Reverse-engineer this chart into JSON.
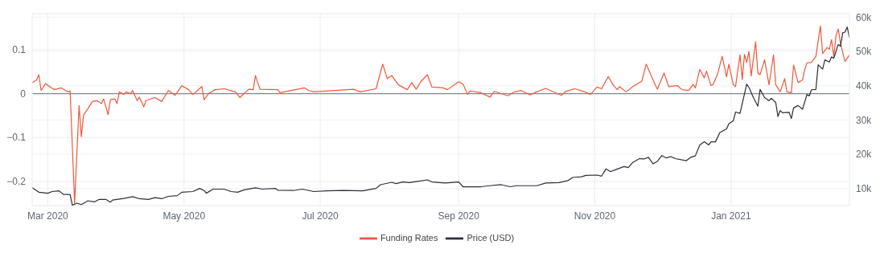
{
  "chart_data": {
    "type": "line",
    "xlim": [
      "2020-02-23",
      "2021-02-23"
    ],
    "xticks": [
      {
        "value": "2020-03-01",
        "label": "Mar 2020"
      },
      {
        "value": "2020-05-01",
        "label": "May 2020"
      },
      {
        "value": "2020-07-01",
        "label": "Jul 2020"
      },
      {
        "value": "2020-09-01",
        "label": "Sep 2020"
      },
      {
        "value": "2020-11-01",
        "label": "Nov 2020"
      },
      {
        "value": "2021-01-01",
        "label": "Jan 2021"
      }
    ],
    "ylim": [
      -0.255,
      0.182
    ],
    "yticks": [
      {
        "value": -0.2,
        "label": "−0.2"
      },
      {
        "value": -0.1,
        "label": "−0.1"
      },
      0,
      0.1
    ],
    "y2lim": [
      5000,
      61000
    ],
    "y2ticks": [
      {
        "value": 10000,
        "label": "10k"
      },
      {
        "value": 20000,
        "label": "20k"
      },
      {
        "value": 30000,
        "label": "30k"
      },
      {
        "value": 40000,
        "label": "40k"
      },
      {
        "value": 50000,
        "label": "50k"
      },
      {
        "value": 60000,
        "label": "60k"
      }
    ],
    "grid": true,
    "legend": "bottom",
    "marker": "none",
    "line_style": "solid",
    "ref_lines": [
      {
        "axis": "y",
        "value": 0,
        "color": "#7f8790"
      }
    ],
    "series": [
      {
        "name": "Funding Rates",
        "color": "#f0583a",
        "x": [
          "2020-02-23",
          "2020-02-25",
          "2020-02-26",
          "2020-02-27",
          "2020-02-29",
          "2020-03-02",
          "2020-03-04",
          "2020-03-07",
          "2020-03-10",
          "2020-03-11",
          "2020-03-13",
          "2020-03-15",
          "2020-03-16",
          "2020-03-17",
          "2020-03-19",
          "2020-03-21",
          "2020-03-23",
          "2020-03-25",
          "2020-03-26",
          "2020-03-28",
          "2020-03-29",
          "2020-03-31",
          "2020-04-01",
          "2020-04-02",
          "2020-04-04",
          "2020-04-05",
          "2020-04-07",
          "2020-04-08",
          "2020-04-10",
          "2020-04-11",
          "2020-04-13",
          "2020-04-14",
          "2020-04-18",
          "2020-04-21",
          "2020-04-24",
          "2020-04-27",
          "2020-04-30",
          "2020-05-03",
          "2020-05-05",
          "2020-05-09",
          "2020-05-10",
          "2020-05-12",
          "2020-05-15",
          "2020-05-19",
          "2020-05-24",
          "2020-05-26",
          "2020-05-30",
          "2020-06-01",
          "2020-06-02",
          "2020-06-04",
          "2020-06-12",
          "2020-06-13",
          "2020-06-18",
          "2020-06-24",
          "2020-06-26",
          "2020-06-28",
          "2020-07-16",
          "2020-07-19",
          "2020-07-26",
          "2020-07-29",
          "2020-07-31",
          "2020-08-02",
          "2020-08-05",
          "2020-08-09",
          "2020-08-11",
          "2020-08-13",
          "2020-08-15",
          "2020-08-18",
          "2020-08-20",
          "2020-08-25",
          "2020-08-27",
          "2020-09-01",
          "2020-09-03",
          "2020-09-05",
          "2020-09-06",
          "2020-09-11",
          "2020-09-15",
          "2020-09-17",
          "2020-09-20",
          "2020-09-23",
          "2020-09-26",
          "2020-09-29",
          "2020-10-03",
          "2020-10-06",
          "2020-10-10",
          "2020-10-17",
          "2020-10-19",
          "2020-10-23",
          "2020-10-27",
          "2020-10-30",
          "2020-11-02",
          "2020-11-04",
          "2020-11-07",
          "2020-11-09",
          "2020-11-11",
          "2020-11-12",
          "2020-11-15",
          "2020-11-18",
          "2020-11-22",
          "2020-11-24",
          "2020-11-28",
          "2020-11-29",
          "2020-12-02",
          "2020-12-04",
          "2020-12-08",
          "2020-12-10",
          "2020-12-13",
          "2020-12-15",
          "2020-12-16",
          "2020-12-18",
          "2020-12-20",
          "2020-12-21",
          "2020-12-23",
          "2020-12-24",
          "2020-12-26",
          "2020-12-28",
          "2020-12-30",
          "2020-12-31",
          "2021-01-02",
          "2021-01-03",
          "2021-01-05",
          "2021-01-06",
          "2021-01-07",
          "2021-01-08",
          "2021-01-09",
          "2021-01-10",
          "2021-01-12",
          "2021-01-13",
          "2021-01-14",
          "2021-01-16",
          "2021-01-18",
          "2021-01-20",
          "2021-01-21",
          "2021-01-23",
          "2021-01-25",
          "2021-01-26",
          "2021-01-28",
          "2021-01-29",
          "2021-01-31",
          "2021-02-02",
          "2021-02-03",
          "2021-02-04",
          "2021-02-06",
          "2021-02-08",
          "2021-02-10",
          "2021-02-11",
          "2021-02-13",
          "2021-02-14",
          "2021-02-15",
          "2021-02-16",
          "2021-02-17",
          "2021-02-18",
          "2021-02-19",
          "2021-02-21",
          "2021-02-23"
        ],
        "values": [
          0.025,
          0.031,
          0.043,
          0.007,
          0.023,
          0.015,
          0.009,
          0.013,
          0.004,
          0.006,
          -0.25,
          -0.027,
          -0.098,
          -0.049,
          -0.034,
          -0.018,
          -0.016,
          -0.023,
          -0.012,
          -0.048,
          -0.014,
          -0.012,
          -0.023,
          0.004,
          -0.002,
          0.004,
          0.0,
          0.007,
          -0.016,
          -0.008,
          -0.03,
          -0.016,
          -0.009,
          -0.018,
          0.007,
          -0.004,
          0.018,
          0.009,
          -0.002,
          0.016,
          -0.014,
          0.0,
          0.009,
          0.011,
          0.004,
          -0.009,
          0.01,
          0.009,
          0.041,
          0.01,
          0.009,
          0.002,
          0.007,
          0.013,
          0.007,
          0.004,
          0.01,
          0.004,
          0.011,
          0.067,
          0.034,
          0.041,
          0.02,
          0.009,
          0.025,
          0.01,
          0.027,
          0.043,
          0.015,
          0.013,
          0.009,
          0.027,
          0.021,
          -0.002,
          0.006,
          0.002,
          -0.008,
          0.005,
          0.0,
          -0.005,
          0.004,
          0.007,
          -0.003,
          0.004,
          0.012,
          -0.004,
          0.005,
          0.011,
          0.005,
          -0.002,
          0.015,
          0.011,
          0.039,
          0.021,
          0.009,
          0.016,
          0.004,
          0.016,
          0.028,
          0.067,
          0.02,
          0.01,
          0.047,
          0.016,
          0.018,
          0.009,
          0.007,
          0.021,
          0.013,
          0.055,
          0.036,
          0.051,
          0.018,
          0.021,
          0.045,
          0.085,
          0.038,
          0.067,
          0.02,
          0.016,
          0.088,
          0.032,
          0.089,
          0.071,
          0.096,
          0.04,
          0.118,
          0.046,
          0.043,
          0.077,
          0.02,
          0.088,
          0.02,
          0.004,
          0.034,
          0.004,
          0.002,
          0.065,
          0.025,
          0.031,
          0.055,
          0.07,
          0.071,
          0.085,
          0.154,
          0.091,
          0.105,
          0.101,
          0.123,
          0.085,
          0.132,
          0.147,
          0.114,
          0.073,
          0.088
        ]
      },
      {
        "name": "Price (USD)",
        "color": "#2a2e39",
        "axis": "y2",
        "x": [
          "2020-02-23",
          "2020-02-26",
          "2020-03-01",
          "2020-03-03",
          "2020-03-06",
          "2020-03-08",
          "2020-03-11",
          "2020-03-12",
          "2020-03-14",
          "2020-03-16",
          "2020-03-19",
          "2020-03-22",
          "2020-03-24",
          "2020-03-27",
          "2020-03-29",
          "2020-03-30",
          "2020-04-04",
          "2020-04-08",
          "2020-04-11",
          "2020-04-15",
          "2020-04-18",
          "2020-04-21",
          "2020-04-24",
          "2020-04-28",
          "2020-04-30",
          "2020-05-05",
          "2020-05-08",
          "2020-05-10",
          "2020-05-11",
          "2020-05-14",
          "2020-05-19",
          "2020-05-22",
          "2020-05-25",
          "2020-05-28",
          "2020-06-02",
          "2020-06-05",
          "2020-06-11",
          "2020-06-12",
          "2020-06-19",
          "2020-06-23",
          "2020-06-26",
          "2020-06-28",
          "2020-07-04",
          "2020-07-11",
          "2020-07-20",
          "2020-07-26",
          "2020-07-28",
          "2020-08-02",
          "2020-08-04",
          "2020-08-07",
          "2020-08-10",
          "2020-08-13",
          "2020-08-18",
          "2020-08-20",
          "2020-08-26",
          "2020-09-01",
          "2020-09-03",
          "2020-09-06",
          "2020-09-11",
          "2020-09-15",
          "2020-09-20",
          "2020-09-24",
          "2020-09-27",
          "2020-10-03",
          "2020-10-06",
          "2020-10-10",
          "2020-10-16",
          "2020-10-20",
          "2020-10-22",
          "2020-10-26",
          "2020-10-28",
          "2020-11-02",
          "2020-11-04",
          "2020-11-06",
          "2020-11-08",
          "2020-11-10",
          "2020-11-14",
          "2020-11-16",
          "2020-11-18",
          "2020-11-21",
          "2020-11-23",
          "2020-11-25",
          "2020-11-27",
          "2020-11-29",
          "2020-12-01",
          "2020-12-03",
          "2020-12-05",
          "2020-12-07",
          "2020-12-12",
          "2020-12-14",
          "2020-12-16",
          "2020-12-18",
          "2020-12-20",
          "2020-12-22",
          "2020-12-23",
          "2020-12-25",
          "2020-12-27",
          "2020-12-30",
          "2020-12-31",
          "2021-01-02",
          "2021-01-03",
          "2021-01-05",
          "2021-01-08",
          "2021-01-09",
          "2021-01-11",
          "2021-01-13",
          "2021-01-14",
          "2021-01-16",
          "2021-01-18",
          "2021-01-19",
          "2021-01-21",
          "2021-01-22",
          "2021-01-23",
          "2021-01-24",
          "2021-01-27",
          "2021-01-28",
          "2021-01-29",
          "2021-01-31",
          "2021-02-02",
          "2021-02-04",
          "2021-02-05",
          "2021-02-06",
          "2021-02-08",
          "2021-02-09",
          "2021-02-11",
          "2021-02-12",
          "2021-02-14",
          "2021-02-15",
          "2021-02-16",
          "2021-02-18",
          "2021-02-19",
          "2021-02-20",
          "2021-02-21",
          "2021-02-22",
          "2021-02-23"
        ],
        "values": [
          10200,
          8900,
          8600,
          9100,
          9300,
          8300,
          8200,
          5100,
          5700,
          5300,
          6400,
          6100,
          6800,
          6800,
          6000,
          6600,
          7100,
          7600,
          7000,
          6800,
          7300,
          7000,
          7700,
          7900,
          8900,
          9100,
          10000,
          9400,
          8600,
          9800,
          9800,
          9100,
          8900,
          9600,
          10200,
          9800,
          10000,
          9500,
          9400,
          9800,
          9400,
          9100,
          9300,
          9400,
          9300,
          10000,
          11100,
          11800,
          11400,
          11900,
          11700,
          12000,
          12500,
          11900,
          11600,
          11900,
          10500,
          10500,
          10500,
          10800,
          11100,
          10500,
          10800,
          10800,
          10800,
          11600,
          11700,
          12300,
          13200,
          13400,
          13800,
          13900,
          13600,
          15700,
          14900,
          15400,
          16400,
          16100,
          17600,
          18700,
          18600,
          19100,
          17200,
          17900,
          19600,
          18900,
          19300,
          18700,
          18100,
          19100,
          19500,
          22700,
          23600,
          22700,
          23600,
          23600,
          26300,
          27400,
          28900,
          29700,
          32300,
          31900,
          40400,
          39500,
          36500,
          34000,
          38900,
          36500,
          35600,
          36300,
          35100,
          31000,
          32700,
          32100,
          32200,
          30400,
          33500,
          34200,
          33100,
          37400,
          37000,
          38800,
          38900,
          46100,
          44800,
          47500,
          46900,
          48400,
          48000,
          52000,
          51500,
          55400,
          55600,
          57100,
          54000
        ]
      }
    ]
  }
}
